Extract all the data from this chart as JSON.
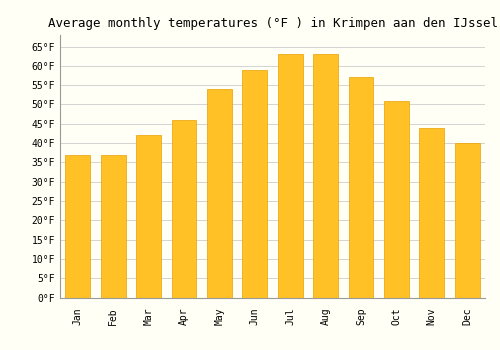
{
  "title": "Average monthly temperatures (°F ) in Krimpen aan den IJssel",
  "months": [
    "Jan",
    "Feb",
    "Mar",
    "Apr",
    "May",
    "Jun",
    "Jul",
    "Aug",
    "Sep",
    "Oct",
    "Nov",
    "Dec"
  ],
  "values": [
    37,
    37,
    42,
    46,
    54,
    59,
    63,
    63,
    57,
    51,
    44,
    40
  ],
  "bar_color": "#FFC125",
  "bar_edge_color": "#E8A000",
  "background_color": "#FFFFF5",
  "grid_color": "#CCCCCC",
  "ylim": [
    0,
    68
  ],
  "yticks": [
    0,
    5,
    10,
    15,
    20,
    25,
    30,
    35,
    40,
    45,
    50,
    55,
    60,
    65
  ],
  "title_fontsize": 9,
  "tick_fontsize": 7,
  "font_family": "monospace",
  "bar_width": 0.7
}
